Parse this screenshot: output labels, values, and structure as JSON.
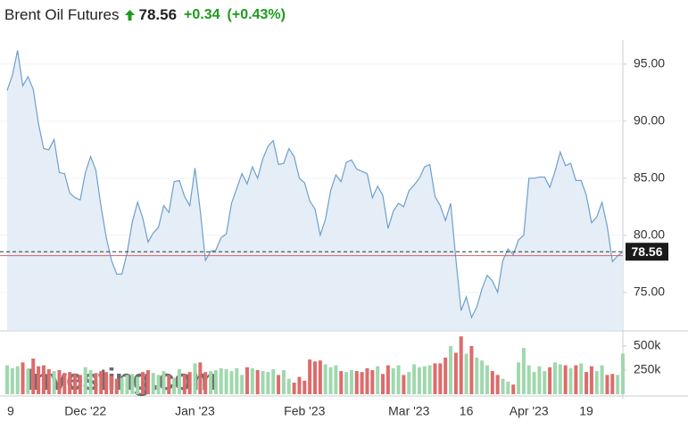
{
  "header": {
    "title": "Brent Oil Futures",
    "price": "78.56",
    "change": "+0.34",
    "change_percent": "(+0.43%)",
    "watermark": "Investing.com"
  },
  "chart_data": [
    {
      "type": "area",
      "color": "#6f9fcd",
      "fill": "#e5eef6",
      "values": [
        92.7,
        94,
        96.2,
        93.1,
        93.9,
        92.8,
        89.8,
        87.6,
        87.5,
        88.4,
        85.5,
        85.4,
        83.7,
        83.3,
        83.1,
        85.5,
        86.9,
        85.7,
        82.5,
        79.8,
        77.8,
        76.6,
        76.6,
        78.5,
        81.2,
        82.9,
        81.5,
        79.4,
        80.2,
        80.7,
        82.6,
        82.0,
        84.7,
        84.8,
        83.4,
        82.6,
        85.9,
        82.2,
        77.8,
        78.6,
        78.7,
        79.8,
        80.1,
        82.8,
        84.1,
        85.4,
        84.5,
        86.0,
        85.0,
        86.7,
        87.8,
        88.3,
        86.2,
        86.3,
        87.6,
        86.9,
        85.0,
        84.6,
        83.0,
        82.3,
        80.0,
        81.4,
        83.9,
        85.3,
        84.7,
        86.4,
        86.6,
        85.8,
        85.6,
        85.4,
        83.3,
        84.3,
        83.5,
        80.6,
        82.1,
        82.8,
        82.5,
        83.9,
        84.4,
        85.0,
        86.0,
        86.2,
        83.4,
        82.6,
        81.3,
        82.8,
        77.9,
        73.4,
        74.6,
        72.8,
        73.7,
        75.3,
        76.5,
        76.0,
        75.0,
        77.8,
        78.8,
        78.3,
        79.6,
        80.0,
        85.0,
        85.0,
        85.1,
        85.1,
        84.2,
        85.6,
        87.3,
        86.1,
        86.3,
        84.8,
        84.8,
        83.5,
        81.1,
        81.6,
        82.9,
        80.8,
        77.7,
        78.2,
        78.56
      ],
      "reference_line": 78.22,
      "reference_color": "#d9636b",
      "ylim": [
        71.7,
        97.1
      ],
      "yticks": [
        {
          "value": 75,
          "label": "75.00"
        },
        {
          "value": 80,
          "label": "80.00"
        },
        {
          "value": 85,
          "label": "85.00"
        },
        {
          "value": 90,
          "label": "90.00"
        },
        {
          "value": 95,
          "label": "95.00"
        }
      ],
      "grid": true
    },
    {
      "type": "bar",
      "up_color": "#9fd8ad",
      "down_color": "#de6b6b",
      "categories": [
        "9",
        null,
        null,
        null,
        null,
        null,
        null,
        null,
        null,
        null,
        null,
        null,
        null,
        null,
        null,
        "Dec '22",
        null,
        null,
        null,
        null,
        null,
        null,
        null,
        null,
        null,
        null,
        null,
        null,
        null,
        null,
        null,
        null,
        null,
        null,
        null,
        null,
        "Jan '23",
        null,
        null,
        null,
        null,
        null,
        null,
        null,
        null,
        null,
        null,
        null,
        null,
        null,
        null,
        null,
        null,
        null,
        null,
        null,
        null,
        "Feb '23",
        null,
        null,
        null,
        null,
        null,
        null,
        null,
        null,
        null,
        null,
        null,
        null,
        null,
        null,
        null,
        null,
        null,
        null,
        null,
        "Mar '23",
        null,
        null,
        null,
        null,
        null,
        null,
        null,
        null,
        null,
        null,
        "16",
        null,
        null,
        null,
        null,
        null,
        null,
        null,
        null,
        null,
        null,
        null,
        "Apr '23",
        null,
        null,
        null,
        null,
        null,
        null,
        null,
        null,
        null,
        null,
        "19",
        null,
        null,
        null,
        null,
        null,
        null,
        null
      ],
      "values": [
        300000,
        270000,
        290000,
        330000,
        260000,
        370000,
        290000,
        300000,
        260000,
        240000,
        250000,
        220000,
        230000,
        210000,
        200000,
        280000,
        250000,
        220000,
        240000,
        230000,
        190000,
        160000,
        170000,
        200000,
        210000,
        180000,
        230000,
        250000,
        220000,
        200000,
        240000,
        200000,
        170000,
        260000,
        210000,
        230000,
        320000,
        330000,
        230000,
        240000,
        250000,
        270000,
        260000,
        240000,
        270000,
        200000,
        280000,
        270000,
        250000,
        240000,
        230000,
        260000,
        200000,
        250000,
        160000,
        120000,
        180000,
        140000,
        360000,
        340000,
        350000,
        310000,
        280000,
        300000,
        240000,
        230000,
        250000,
        240000,
        230000,
        270000,
        250000,
        290000,
        210000,
        300000,
        270000,
        300000,
        200000,
        230000,
        310000,
        280000,
        290000,
        300000,
        320000,
        320000,
        380000,
        500000,
        430000,
        600000,
        420000,
        500000,
        380000,
        350000,
        300000,
        240000,
        200000,
        160000,
        130000,
        100000,
        330000,
        480000,
        300000,
        230000,
        290000,
        240000,
        280000,
        330000,
        310000,
        300000,
        270000,
        300000,
        320000,
        230000,
        290000,
        240000,
        300000,
        200000,
        210000,
        200000,
        420000
      ],
      "ylim": [
        0,
        620000
      ],
      "yticks": [
        {
          "value": 250000,
          "label": "250k"
        },
        {
          "value": 500000,
          "label": "500k"
        }
      ]
    }
  ]
}
